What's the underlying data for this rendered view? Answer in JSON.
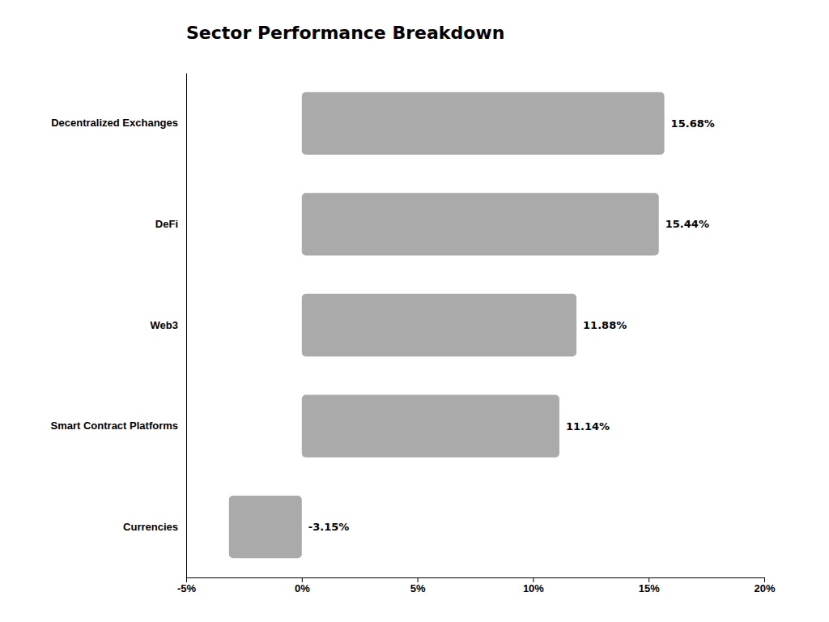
{
  "chart_data": {
    "type": "bar",
    "orientation": "horizontal",
    "title": "Sector Performance Breakdown",
    "categories": [
      "Decentralized Exchanges",
      "DeFi",
      "Web3",
      "Smart Contract Platforms",
      "Currencies"
    ],
    "values": [
      15.68,
      15.44,
      11.88,
      11.14,
      -3.15
    ],
    "value_labels": [
      "15.68%",
      "15.44%",
      "11.88%",
      "11.14%",
      "-3.15%"
    ],
    "data_labels": true,
    "color": "#AAAAAA",
    "xlim": [
      -5,
      20
    ],
    "xticks": [
      {
        "value": -5,
        "label": "-5%"
      },
      {
        "value": 0,
        "label": "0%"
      },
      {
        "value": 5,
        "label": "5%"
      },
      {
        "value": 10,
        "label": "10%"
      },
      {
        "value": 15,
        "label": "15%"
      },
      {
        "value": 20,
        "label": "20%"
      }
    ],
    "grid": false
  }
}
